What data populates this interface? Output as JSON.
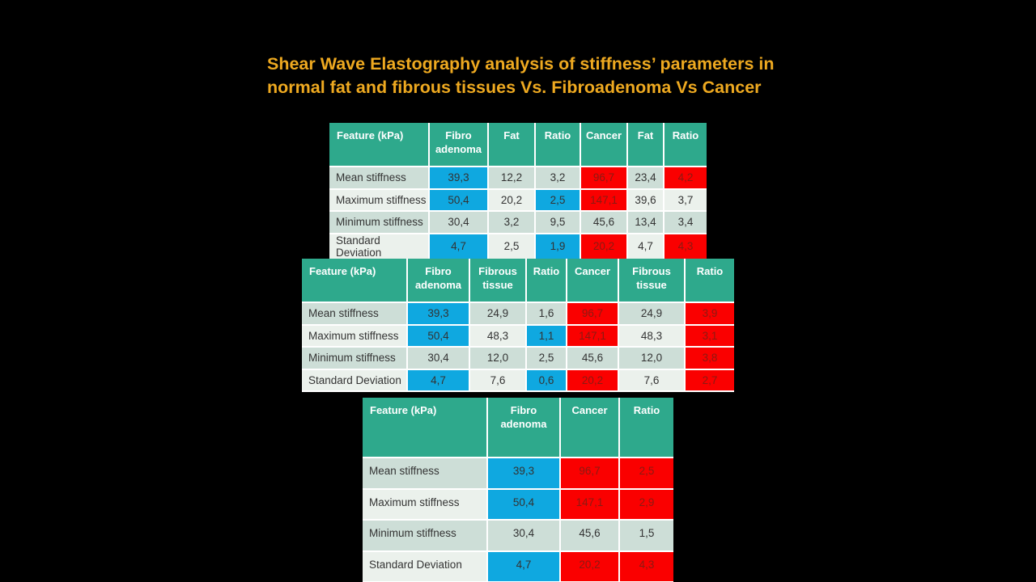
{
  "slide": {
    "title_line1": "Shear Wave Elastography analysis of stiffness’ parameters in",
    "title_line2": "normal fat and fibrous tissues Vs. Fibroadenoma Vs Cancer"
  },
  "colors": {
    "background": "#000000",
    "title": "#EEA920",
    "header_bg": "#2EA98C",
    "header_text": "#FFFFFF",
    "row_odd": "#CDDED7",
    "row_even": "#EBF1EC",
    "highlight_blue": "#0FA8E0",
    "highlight_red": "#FA0000",
    "red_text": "#8B1A12",
    "cell_text": "#333333"
  },
  "tables": [
    {
      "headers": [
        "Feature (kPa)",
        "Fibro adenoma",
        "Fat",
        "Ratio",
        "Cancer",
        "Fat",
        "Ratio"
      ],
      "rows": [
        {
          "label": "Mean stiffness",
          "cells": [
            {
              "v": "39,3",
              "hl": "blue"
            },
            {
              "v": "12,2"
            },
            {
              "v": "3,2"
            },
            {
              "v": "96,7",
              "hl": "red"
            },
            {
              "v": "23,4"
            },
            {
              "v": "4,2",
              "hl": "red"
            }
          ]
        },
        {
          "label": "Maximum stiffness",
          "cells": [
            {
              "v": "50,4",
              "hl": "blue"
            },
            {
              "v": "20,2"
            },
            {
              "v": "2,5",
              "hl": "blue"
            },
            {
              "v": "147,1",
              "hl": "red"
            },
            {
              "v": "39,6"
            },
            {
              "v": "3,7"
            }
          ]
        },
        {
          "label": "Minimum stiffness",
          "cells": [
            {
              "v": "30,4"
            },
            {
              "v": "3,2"
            },
            {
              "v": "9,5"
            },
            {
              "v": "45,6"
            },
            {
              "v": "13,4"
            },
            {
              "v": "3,4"
            }
          ]
        },
        {
          "label": "Standard Deviation",
          "cells": [
            {
              "v": "4,7",
              "hl": "blue"
            },
            {
              "v": "2,5"
            },
            {
              "v": "1,9",
              "hl": "blue"
            },
            {
              "v": "20,2",
              "hl": "red"
            },
            {
              "v": "4,7"
            },
            {
              "v": "4,3",
              "hl": "red"
            }
          ]
        }
      ]
    },
    {
      "headers": [
        "Feature (kPa)",
        "Fibro adenoma",
        "Fibrous tissue",
        "Ratio",
        "Cancer",
        "Fibrous tissue",
        "Ratio"
      ],
      "rows": [
        {
          "label": "Mean stiffness",
          "cells": [
            {
              "v": "39,3",
              "hl": "blue"
            },
            {
              "v": "24,9"
            },
            {
              "v": "1,6"
            },
            {
              "v": "96,7",
              "hl": "red"
            },
            {
              "v": "24,9"
            },
            {
              "v": "3,9",
              "hl": "red"
            }
          ]
        },
        {
          "label": "Maximum stiffness",
          "cells": [
            {
              "v": "50,4",
              "hl": "blue"
            },
            {
              "v": "48,3"
            },
            {
              "v": "1,1",
              "hl": "blue"
            },
            {
              "v": "147,1",
              "hl": "red"
            },
            {
              "v": "48,3"
            },
            {
              "v": "3,1",
              "hl": "red"
            }
          ]
        },
        {
          "label": "Minimum stiffness",
          "cells": [
            {
              "v": "30,4"
            },
            {
              "v": "12,0"
            },
            {
              "v": "2,5"
            },
            {
              "v": "45,6"
            },
            {
              "v": "12,0"
            },
            {
              "v": "3,8",
              "hl": "red"
            }
          ]
        },
        {
          "label": "Standard Deviation",
          "cells": [
            {
              "v": "4,7",
              "hl": "blue"
            },
            {
              "v": "7,6"
            },
            {
              "v": "0,6",
              "hl": "blue"
            },
            {
              "v": "20,2",
              "hl": "red"
            },
            {
              "v": "7,6"
            },
            {
              "v": "2,7",
              "hl": "red"
            }
          ]
        }
      ]
    },
    {
      "headers": [
        "Feature (kPa)",
        "Fibro adenoma",
        "Cancer",
        "Ratio"
      ],
      "rows": [
        {
          "label": "Mean stiffness",
          "cells": [
            {
              "v": "39,3",
              "hl": "blue"
            },
            {
              "v": "96,7",
              "hl": "red"
            },
            {
              "v": "2,5",
              "hl": "red"
            }
          ]
        },
        {
          "label": "Maximum stiffness",
          "cells": [
            {
              "v": "50,4",
              "hl": "blue"
            },
            {
              "v": "147,1",
              "hl": "red"
            },
            {
              "v": "2,9",
              "hl": "red"
            }
          ]
        },
        {
          "label": "Minimum stiffness",
          "cells": [
            {
              "v": "30,4"
            },
            {
              "v": "45,6"
            },
            {
              "v": "1,5"
            }
          ]
        },
        {
          "label": "Standard Deviation",
          "cells": [
            {
              "v": "4,7",
              "hl": "blue"
            },
            {
              "v": "20,2",
              "hl": "red"
            },
            {
              "v": "4,3",
              "hl": "red"
            }
          ]
        }
      ]
    }
  ]
}
